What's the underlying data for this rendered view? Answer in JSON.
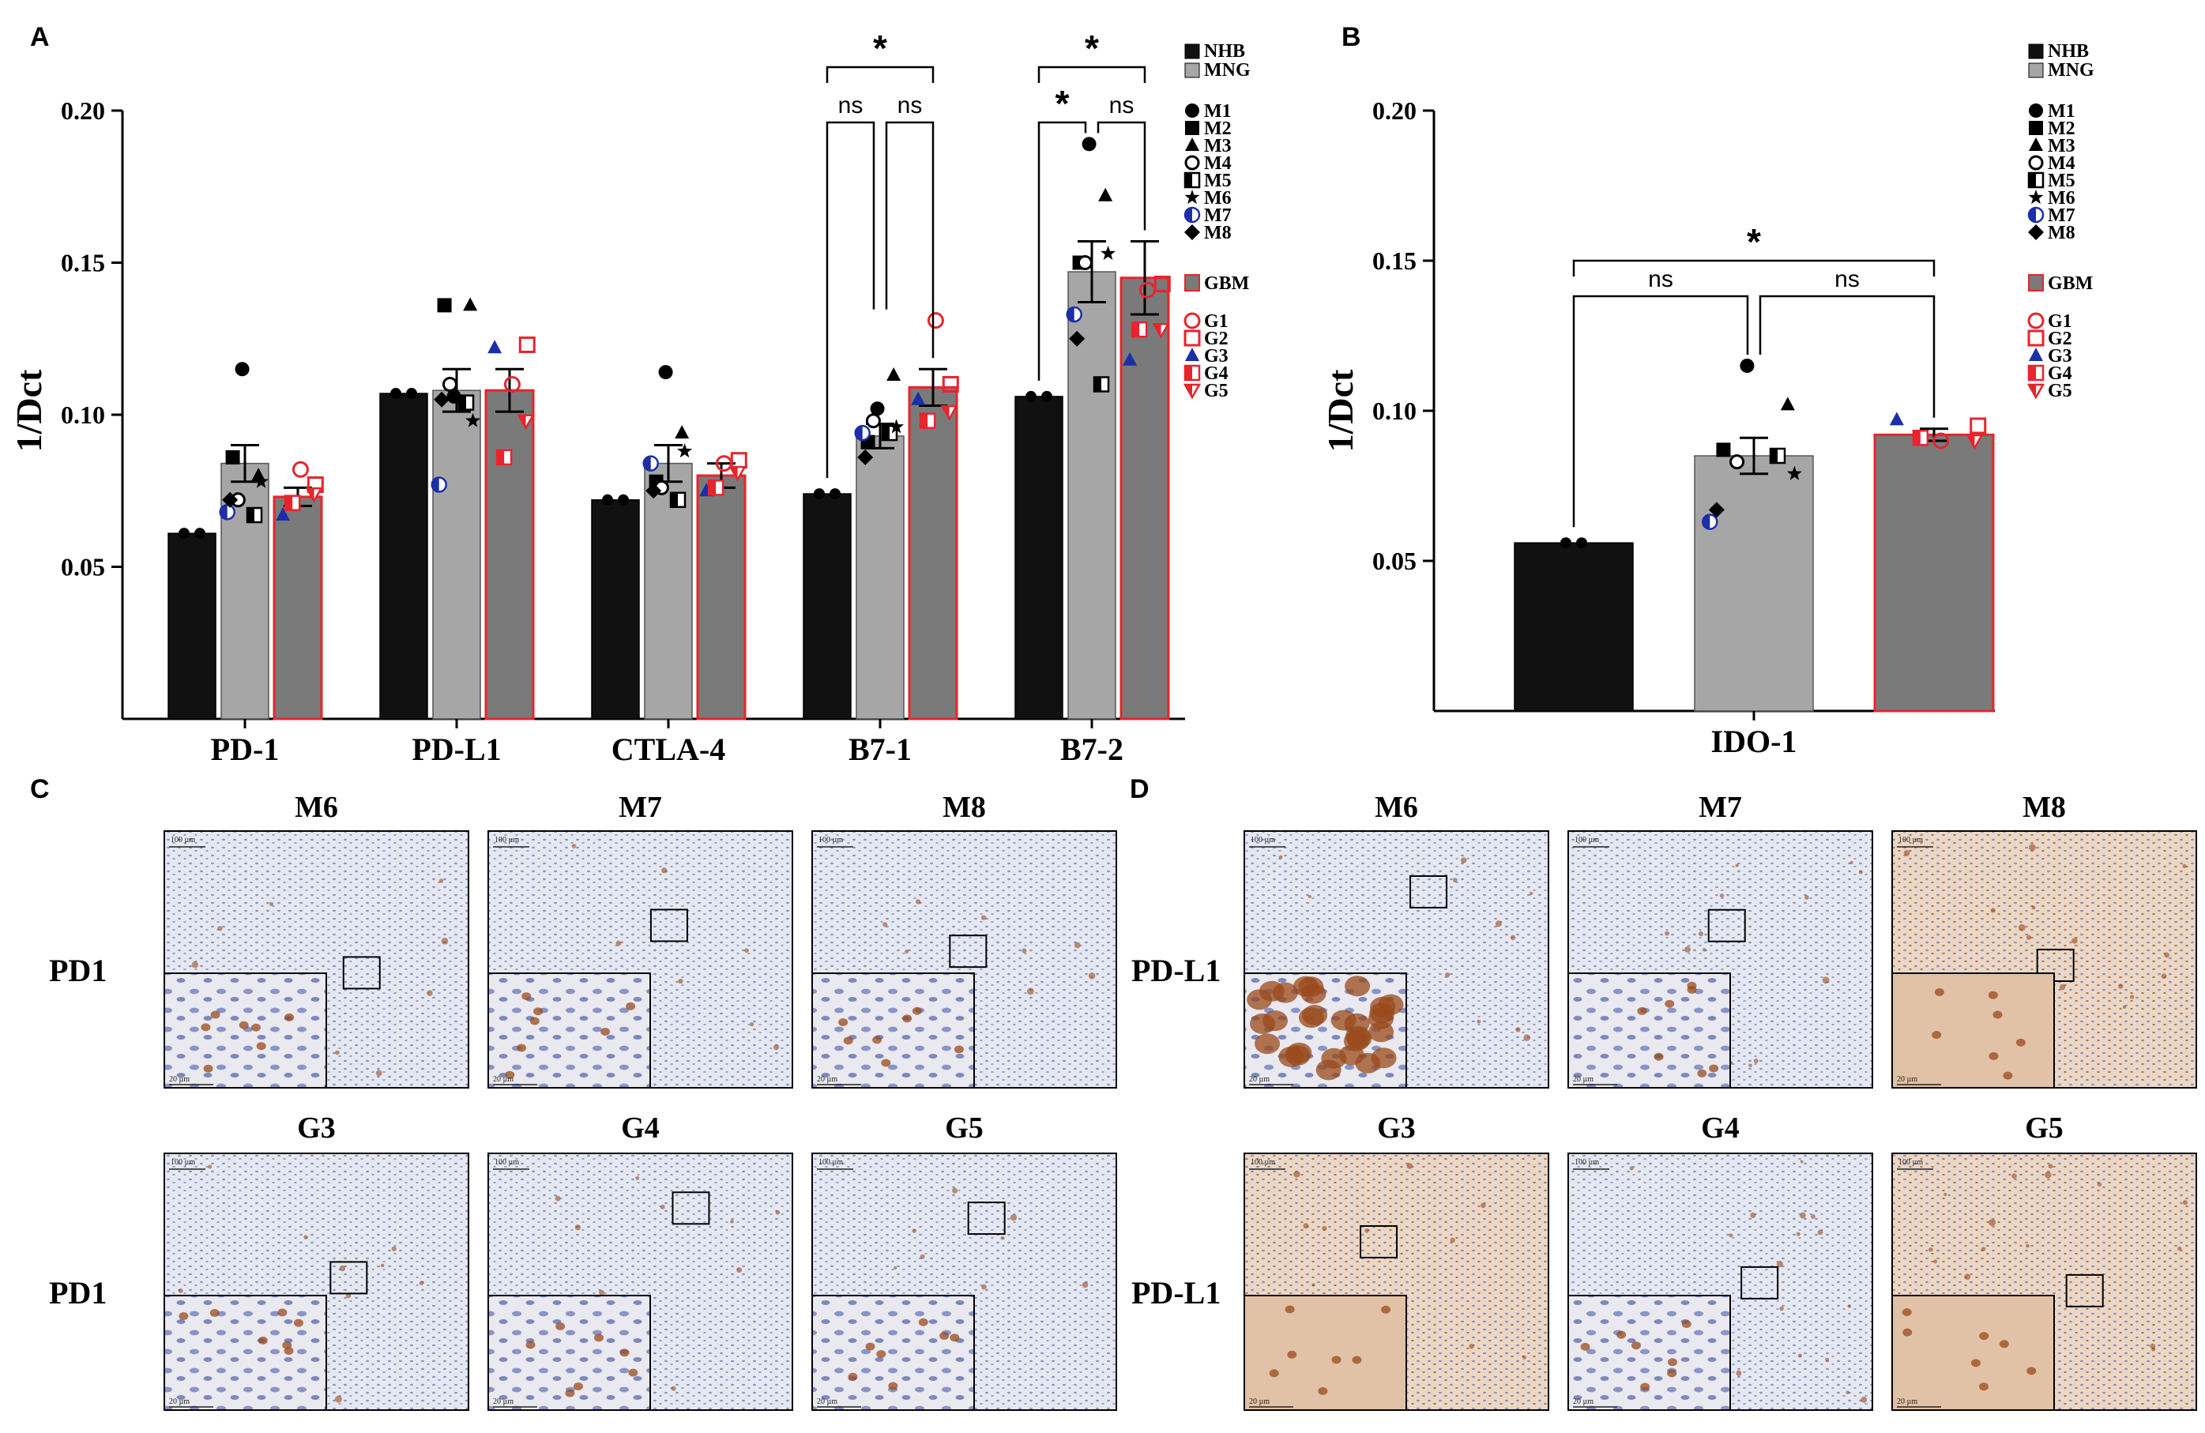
{
  "panels": {
    "a": "A",
    "b": "B",
    "c": "C",
    "d": "D"
  },
  "colors": {
    "nhb": "#111111",
    "mng": "#a6a6a6",
    "gbm": "#7a7a7a",
    "gbm_border": "#e8242c",
    "red": "#e8242c",
    "blue": "#1c2fa8",
    "tissue": "#d8dcec",
    "stain": "#9a4a1c"
  },
  "chart_data": [
    {
      "id": "A",
      "type": "bar",
      "ylabel": "1/Dct",
      "ylim": [
        0,
        0.2
      ],
      "yticks": [
        0.05,
        0.1,
        0.15,
        0.2
      ],
      "ytick_labels": [
        "0.05",
        "0.10",
        "0.15",
        "0.20"
      ],
      "categories": [
        "PD-1",
        "PD-L1",
        "CTLA-4",
        "B7-1",
        "B7-2"
      ],
      "series": [
        {
          "name": "NHB",
          "values": [
            0.061,
            0.107,
            0.072,
            0.074,
            0.106
          ],
          "sem": [
            0.0005,
            0.0005,
            0.0005,
            0.0005,
            0.0005
          ]
        },
        {
          "name": "MNG",
          "values": [
            0.084,
            0.108,
            0.084,
            0.093,
            0.147
          ],
          "sem": [
            0.006,
            0.007,
            0.006,
            0.004,
            0.01
          ]
        },
        {
          "name": "GBM",
          "values": [
            0.073,
            0.108,
            0.08,
            0.109,
            0.145
          ],
          "sem": [
            0.003,
            0.007,
            0.004,
            0.006,
            0.012
          ]
        }
      ],
      "points_mng": {
        "labels": [
          "M1",
          "M2",
          "M3",
          "M4",
          "M5",
          "M6",
          "M7",
          "M8"
        ],
        "values": [
          [
            0.115,
            0.086,
            0.08,
            0.072,
            0.067,
            0.078,
            0.068,
            0.072
          ],
          [
            0.106,
            0.136,
            0.136,
            0.11,
            0.104,
            0.098,
            0.077,
            0.105
          ],
          [
            0.114,
            0.078,
            0.094,
            0.076,
            0.072,
            0.088,
            0.084,
            0.075
          ],
          [
            0.102,
            0.091,
            0.113,
            0.098,
            0.094,
            0.096,
            0.094,
            0.086
          ],
          [
            0.189,
            0.15,
            0.172,
            0.15,
            0.11,
            0.153,
            0.133,
            0.125
          ]
        ]
      },
      "points_gbm": {
        "labels": [
          "G1",
          "G2",
          "G3",
          "G4",
          "G5"
        ],
        "values": [
          [
            0.082,
            0.077,
            0.067,
            0.071,
            0.074
          ],
          [
            0.11,
            0.123,
            0.122,
            0.086,
            0.098
          ],
          [
            0.084,
            0.085,
            0.075,
            0.076,
            0.081
          ],
          [
            0.131,
            0.11,
            0.105,
            0.098,
            0.101
          ],
          [
            0.141,
            0.143,
            0.118,
            0.128,
            0.128
          ]
        ]
      },
      "annotations": [
        {
          "category": "B7-1",
          "from": "NHB",
          "to": "MNG",
          "text": "ns"
        },
        {
          "category": "B7-1",
          "from": "MNG",
          "to": "GBM",
          "text": "ns"
        },
        {
          "category": "B7-1",
          "from": "NHB",
          "to": "GBM",
          "text": "*"
        },
        {
          "category": "B7-2",
          "from": "NHB",
          "to": "MNG",
          "text": "*"
        },
        {
          "category": "B7-2",
          "from": "MNG",
          "to": "GBM",
          "text": "ns"
        },
        {
          "category": "B7-2",
          "from": "NHB",
          "to": "GBM",
          "text": "*"
        }
      ],
      "legend": {
        "groups": [
          "NHB",
          "MNG"
        ],
        "mng_points": [
          "M1",
          "M2",
          "M3",
          "M4",
          "M5",
          "M6",
          "M7",
          "M8"
        ],
        "gbm_group": "GBM",
        "gbm_points": [
          "G1",
          "G2",
          "G3",
          "G4",
          "G5"
        ]
      }
    },
    {
      "id": "B",
      "type": "bar",
      "ylabel": "1/Dct",
      "ylim": [
        0,
        0.2
      ],
      "yticks": [
        0.05,
        0.1,
        0.15,
        0.2
      ],
      "ytick_labels": [
        "0.05",
        "0.10",
        "0.15",
        "0.20"
      ],
      "categories": [
        "IDO-1"
      ],
      "series": [
        {
          "name": "NHB",
          "values": [
            0.056
          ],
          "sem": [
            0.0005
          ]
        },
        {
          "name": "MNG",
          "values": [
            0.085
          ],
          "sem": [
            0.006
          ]
        },
        {
          "name": "GBM",
          "values": [
            0.092
          ],
          "sem": [
            0.002
          ]
        }
      ],
      "points_mng": {
        "labels": [
          "M1",
          "M2",
          "M3",
          "M4",
          "M5",
          "M6",
          "M7",
          "M8"
        ],
        "values": [
          [
            0.115,
            0.087,
            0.102,
            0.083,
            0.085,
            0.079,
            0.063,
            0.067
          ]
        ]
      },
      "points_gbm": {
        "labels": [
          "G1",
          "G2",
          "G3",
          "G4",
          "G5"
        ],
        "values": [
          [
            0.09,
            0.095,
            0.097,
            0.091,
            0.09
          ]
        ]
      },
      "annotations": [
        {
          "category": "IDO-1",
          "from": "NHB",
          "to": "MNG",
          "text": "ns"
        },
        {
          "category": "IDO-1",
          "from": "MNG",
          "to": "GBM",
          "text": "ns"
        },
        {
          "category": "IDO-1",
          "from": "NHB",
          "to": "GBM",
          "text": "*"
        }
      ],
      "legend": {
        "groups": [
          "NHB",
          "MNG"
        ],
        "mng_points": [
          "M1",
          "M2",
          "M3",
          "M4",
          "M5",
          "M6",
          "M7",
          "M8"
        ],
        "gbm_group": "GBM",
        "gbm_points": [
          "G1",
          "G2",
          "G3",
          "G4",
          "G5"
        ]
      }
    }
  ],
  "micrographs": {
    "C": {
      "row_labels": [
        "PD1",
        "PD1"
      ],
      "titles": [
        [
          "M6",
          "M7",
          "M8"
        ],
        [
          "G3",
          "G4",
          "G5"
        ]
      ],
      "scale_main": "100 µm",
      "scale_inset": "20 µm"
    },
    "D": {
      "row_labels": [
        "PD-L1",
        "PD-L1"
      ],
      "titles": [
        [
          "M6",
          "M7",
          "M8"
        ],
        [
          "G3",
          "G4",
          "G5"
        ]
      ],
      "scale_main": "100 µm",
      "scale_inset": "20 µm"
    }
  }
}
